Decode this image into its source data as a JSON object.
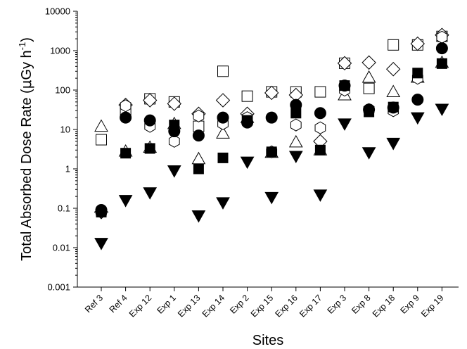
{
  "chart_data": {
    "type": "scatter",
    "title": "",
    "xlabel": "Sites",
    "ylabel_main": "Total Absorbed Dose Rate (",
    "ylabel_mu": "μ",
    "ylabel_unit": "Gy h",
    "ylabel_exp": "-1",
    "ylabel_close": ")",
    "yscale": "log",
    "ylim": [
      0.001,
      10000
    ],
    "yticks": [
      "0.001",
      "0.01",
      "0.1",
      "1",
      "10",
      "100",
      "1000",
      "10000"
    ],
    "categories": [
      "Ref 3",
      "Ref 4",
      "Exp 12",
      "Exp 1",
      "Exp 13",
      "Exp 14",
      "Exp 2",
      "Exp 15",
      "Exp 16",
      "Exp 17",
      "Exp 3",
      "Exp 8",
      "Exp 18",
      "Exp 9",
      "Exp 19"
    ],
    "series": [
      {
        "marker": "square-open",
        "values": [
          5.5,
          28,
          60,
          50,
          12,
          300,
          70,
          90,
          90,
          90,
          480,
          110,
          1400,
          1400,
          2300
        ]
      },
      {
        "marker": "triangle-up-open",
        "values": [
          12,
          2.8,
          3.5,
          14,
          1.8,
          8,
          20,
          2.6,
          4.8,
          3,
          75,
          210,
          90,
          210,
          500
        ]
      },
      {
        "marker": "diamond-open",
        "values": [
          0.08,
          42,
          55,
          45,
          25,
          55,
          25,
          85,
          75,
          5,
          480,
          500,
          340,
          1500,
          2500
        ]
      },
      {
        "marker": "hexagon-open",
        "values": [
          0.08,
          40,
          12,
          5,
          22,
          14,
          20,
          2.7,
          13,
          11,
          100,
          32,
          30,
          200,
          2200
        ]
      },
      {
        "marker": "circle-filled",
        "values": [
          0.09,
          20,
          17,
          9,
          7,
          20,
          15,
          20,
          42,
          26,
          130,
          32,
          36,
          57,
          1150
        ]
      },
      {
        "marker": "square-filled",
        "values": [
          0.08,
          2.5,
          3.3,
          13,
          1,
          1.9,
          17,
          2.7,
          26,
          3,
          130,
          28,
          37,
          270,
          470
        ]
      },
      {
        "marker": "triangle-down-filled",
        "values": [
          0.013,
          0.16,
          0.25,
          0.9,
          0.065,
          0.14,
          1.5,
          0.19,
          2.1,
          0.22,
          14,
          2.6,
          4.5,
          20,
          33
        ]
      }
    ]
  }
}
